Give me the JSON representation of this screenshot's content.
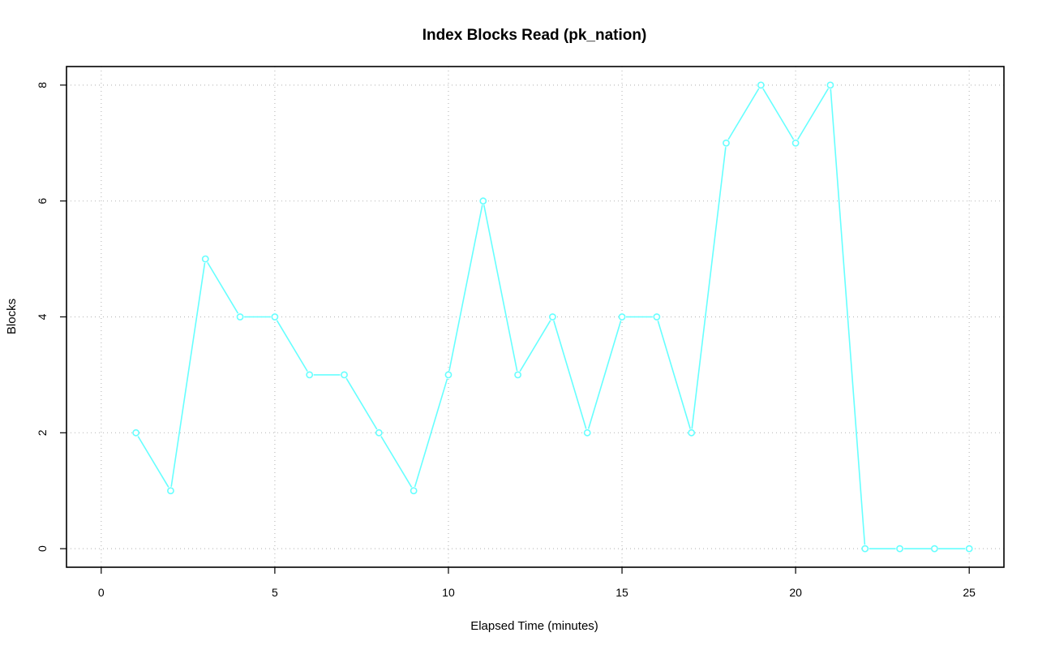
{
  "chart_data": {
    "type": "line",
    "title": "Index Blocks Read (pk_nation)",
    "xlabel": "Elapsed Time (minutes)",
    "ylabel": "Blocks",
    "xlim": [
      -1,
      26
    ],
    "ylim": [
      -0.32,
      8.32
    ],
    "x_ticks": [
      0,
      5,
      10,
      15,
      20,
      25
    ],
    "y_ticks": [
      0,
      2,
      4,
      6,
      8
    ],
    "grid": true,
    "series": [
      {
        "color": "#66ffff",
        "x": [
          1,
          2,
          3,
          4,
          5,
          6,
          7,
          8,
          9,
          10,
          11,
          12,
          13,
          14,
          15,
          16,
          17,
          18,
          19,
          20,
          21,
          22,
          23,
          24,
          25
        ],
        "y": [
          2,
          1,
          5,
          4,
          4,
          3,
          3,
          2,
          1,
          3,
          6,
          3,
          4,
          2,
          4,
          4,
          2,
          7,
          8,
          7,
          8,
          0,
          0,
          0,
          0
        ]
      }
    ]
  }
}
